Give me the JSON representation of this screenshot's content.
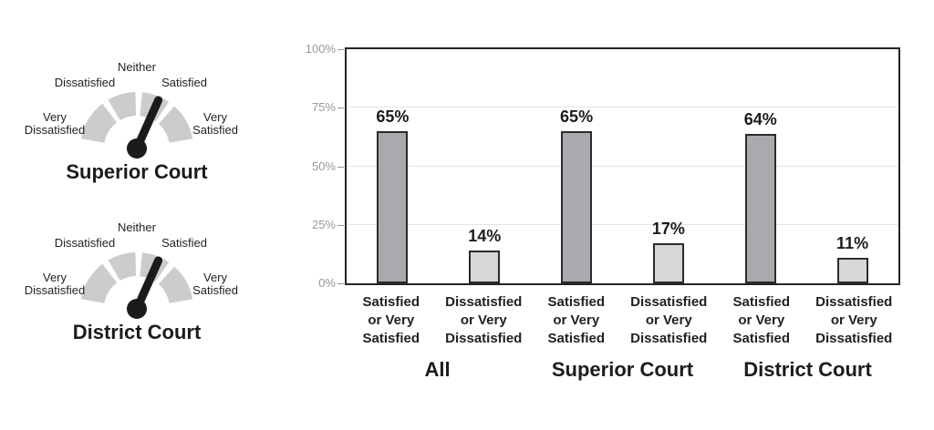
{
  "colors": {
    "gauge_arc": "#cccccc",
    "gauge_needle": "#1b1b1b",
    "satisfied_bar": "#a8aaad",
    "dissatisfied_bar": "#d6d7d8",
    "bar_border": "#2b2b2b",
    "plot_border": "#242424",
    "gridline": "#e6e6e6",
    "axis_label_text": "#999999",
    "label_text": "#231f20"
  },
  "gauges": [
    {
      "title": "Superior Court",
      "needle_points_to": "Satisfied",
      "scale": {
        "top": "Neither",
        "left": "Dissatisfied",
        "right": "Satisfied",
        "far_left": [
          "Very",
          "Dissatisfied"
        ],
        "far_right": [
          "Very",
          "Satisfied"
        ]
      }
    },
    {
      "title": "District Court",
      "needle_points_to": "Satisfied",
      "scale": {
        "top": "Neither",
        "left": "Dissatisfied",
        "right": "Satisfied",
        "far_left": [
          "Very",
          "Dissatisfied"
        ],
        "far_right": [
          "Very",
          "Satisfied"
        ]
      }
    }
  ],
  "chart_data": {
    "type": "bar",
    "title": "",
    "xlabel": "",
    "ylabel": "",
    "y_axis": {
      "tick_labels": [
        "0%",
        "25%",
        "50%",
        "75%",
        "100%"
      ],
      "tick_values": [
        0,
        25,
        50,
        75,
        100
      ],
      "ylim": [
        0,
        100
      ],
      "grid": true
    },
    "legend": null,
    "groups": [
      {
        "label": "All",
        "bars": [
          {
            "label": "Satisfied or Very Satisfied",
            "label_lines": [
              "Satisfied",
              "or Very",
              "Satisfied"
            ],
            "value": 65,
            "display": "65%",
            "series": "satisfied"
          },
          {
            "label": "Dissatisfied or Very Dissatisfied",
            "label_lines": [
              "Dissatisfied",
              "or Very",
              "Dissatisfied"
            ],
            "value": 14,
            "display": "14%",
            "series": "dissatisfied"
          }
        ]
      },
      {
        "label": "Superior Court",
        "bars": [
          {
            "label": "Satisfied or Very Satisfied",
            "label_lines": [
              "Satisfied",
              "or Very",
              "Satisfied"
            ],
            "value": 65,
            "display": "65%",
            "series": "satisfied"
          },
          {
            "label": "Dissatisfied or Very Dissatisfied",
            "label_lines": [
              "Dissatisfied",
              "or Very",
              "Dissatisfied"
            ],
            "value": 17,
            "display": "17%",
            "series": "dissatisfied"
          }
        ]
      },
      {
        "label": "District Court",
        "bars": [
          {
            "label": "Satisfied or Very Satisfied",
            "label_lines": [
              "Satisfied",
              "or Very",
              "Satisfied"
            ],
            "value": 64,
            "display": "64%",
            "series": "satisfied"
          },
          {
            "label": "Dissatisfied or Very Dissatisfied",
            "label_lines": [
              "Dissatisfied",
              "or Very",
              "Dissatisfied"
            ],
            "value": 11,
            "display": "11%",
            "series": "dissatisfied"
          }
        ]
      }
    ]
  }
}
